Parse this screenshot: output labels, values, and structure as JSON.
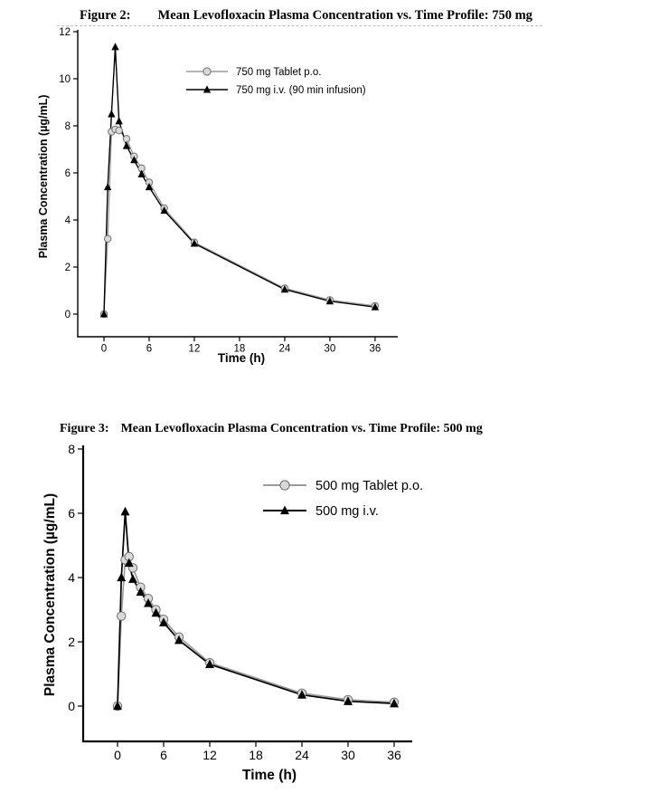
{
  "page": {
    "background": "#ffffff"
  },
  "colors": {
    "tablet_line": "#9b9b9b",
    "tablet_fill": "#d9d9d9",
    "tablet_stroke": "#6f6f6f",
    "iv_line": "#000000",
    "text": "#000000",
    "title_underline": "#c0c0c0"
  },
  "chart_data": [
    {
      "type": "line",
      "figure_label": "Figure 2:",
      "title": "Mean Levofloxacin Plasma Concentration vs. Time Profile: 750 mg",
      "xlabel": "Time (h)",
      "ylabel": "Plasma Concentration (µg/mL)",
      "x_ticks": [
        0,
        6,
        12,
        18,
        24,
        30,
        36
      ],
      "y_ticks": [
        0,
        2,
        4,
        6,
        8,
        10,
        12
      ],
      "xlim": [
        -3.5,
        39
      ],
      "ylim": [
        -1,
        12.2
      ],
      "grid": false,
      "legend_position": "upper-right-inside",
      "series": [
        {
          "name": "750 mg Tablet p.o.",
          "marker": "circle",
          "color_key": "tablet",
          "x": [
            0,
            0.5,
            1,
            1.5,
            2,
            3,
            4,
            5,
            6,
            8,
            12,
            24,
            30,
            36
          ],
          "y": [
            0,
            3.2,
            7.75,
            7.85,
            7.8,
            7.45,
            6.7,
            6.2,
            5.6,
            4.5,
            3.05,
            1.1,
            0.6,
            0.35
          ]
        },
        {
          "name": "750 mg i.v. (90 min infusion)",
          "marker": "triangle",
          "color_key": "iv",
          "x": [
            0,
            0.5,
            1,
            1.5,
            2,
            3,
            4,
            5,
            6,
            8,
            12,
            24,
            30,
            36
          ],
          "y": [
            0,
            5.4,
            8.5,
            11.35,
            8.2,
            7.15,
            6.55,
            5.95,
            5.4,
            4.4,
            3.0,
            1.05,
            0.55,
            0.3
          ]
        }
      ]
    },
    {
      "type": "line",
      "figure_label": "Figure 3:",
      "title": "Mean Levofloxacin Plasma Concentration vs. Time Profile: 500 mg",
      "xlabel": "Time (h)",
      "ylabel": "Plasma Concentration (µg/mL)",
      "x_ticks": [
        0,
        6,
        12,
        18,
        24,
        30,
        36
      ],
      "y_ticks": [
        0,
        2,
        4,
        6,
        8
      ],
      "xlim": [
        -4.5,
        39
      ],
      "ylim": [
        -1.1,
        8.2
      ],
      "grid": false,
      "legend_position": "upper-right-inside",
      "series": [
        {
          "name": "500 mg Tablet p.o.",
          "marker": "circle",
          "color_key": "tablet",
          "x": [
            0,
            0.5,
            1,
            1.5,
            2,
            3,
            4,
            5,
            6,
            8,
            12,
            24,
            30,
            36
          ],
          "y": [
            0,
            2.8,
            4.55,
            4.65,
            4.3,
            3.7,
            3.35,
            3.0,
            2.7,
            2.15,
            1.35,
            0.4,
            0.2,
            0.12
          ]
        },
        {
          "name": "500 mg i.v.",
          "marker": "triangle",
          "color_key": "iv",
          "x": [
            0,
            0.5,
            1,
            1.5,
            2,
            3,
            4,
            5,
            6,
            8,
            12,
            24,
            30,
            36
          ],
          "y": [
            0,
            4.0,
            6.05,
            4.45,
            3.95,
            3.55,
            3.2,
            2.9,
            2.6,
            2.05,
            1.3,
            0.35,
            0.15,
            0.08
          ]
        }
      ]
    }
  ]
}
